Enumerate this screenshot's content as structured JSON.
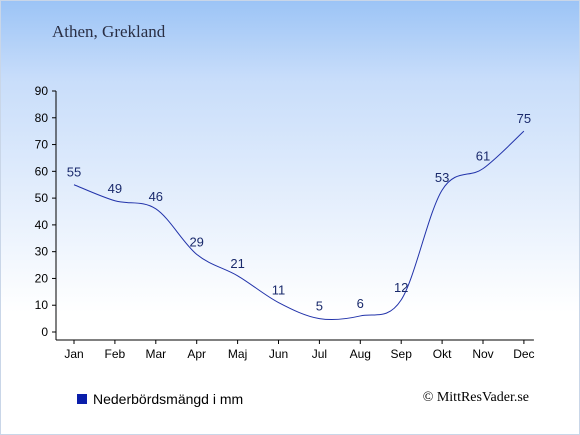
{
  "header": {
    "title": "Athen, Grekland"
  },
  "legend": {
    "label": "Nederbördsmängd i mm"
  },
  "footer": {
    "credit": "© MittResVader.se"
  },
  "chart_data": {
    "type": "line",
    "categories": [
      "Jan",
      "Feb",
      "Mar",
      "Apr",
      "Maj",
      "Jun",
      "Jul",
      "Aug",
      "Sep",
      "Okt",
      "Nov",
      "Dec"
    ],
    "series": [
      {
        "values": [
          55,
          49,
          46,
          29,
          21,
          11,
          5,
          6,
          12,
          53,
          61,
          75
        ]
      }
    ],
    "ylim": [
      0,
      90
    ],
    "yticks": [
      0,
      10,
      20,
      30,
      40,
      50,
      60,
      70,
      80,
      90
    ],
    "ytick_labels": [
      "0",
      "10",
      "20",
      "30",
      "40",
      "50",
      "60",
      "70",
      "80",
      "90"
    ],
    "line_color": "#2233aa",
    "label_color": "#1a2a6c",
    "legend_color": "#0a1eaa",
    "grid": false
  }
}
